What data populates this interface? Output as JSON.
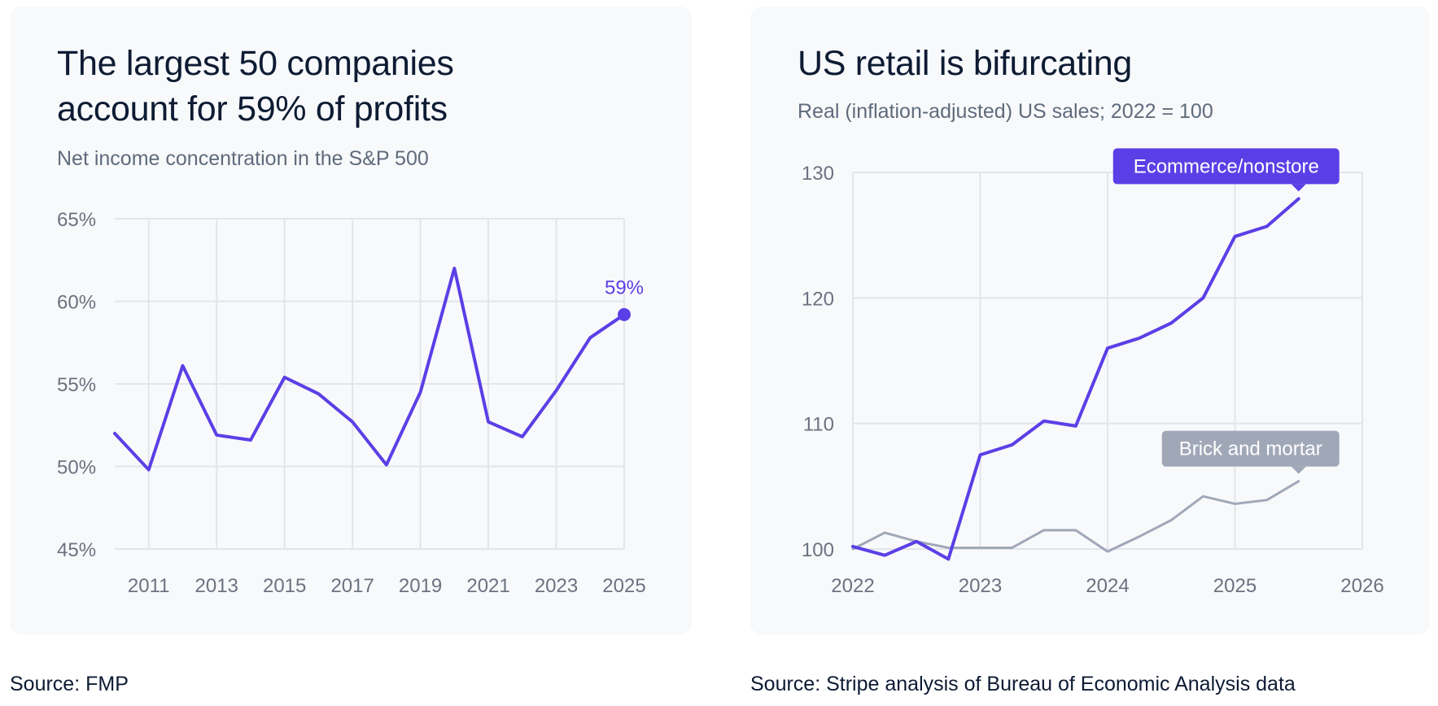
{
  "left_panel": {
    "title_line1": "The largest 50 companies",
    "title_line2": "account for 59% of profits",
    "subtitle": "Net income concentration in the S&P 500",
    "source": "Source: FMP"
  },
  "right_panel": {
    "title": "US retail is bifurcating",
    "subtitle": "Real (inflation-adjusted) US sales; 2022 = 100",
    "source": "Source: Stripe analysis of Bureau of Economic Analysis data"
  },
  "colors": {
    "accent": "#5b3fe6",
    "grey_series": "#a0a8b8",
    "grid": "#e3e5eb",
    "tick": "#6b7280"
  },
  "chart_data": [
    {
      "type": "line",
      "title": "The largest 50 companies account for 59% of profits",
      "subtitle": "Net income concentration in the S&P 500",
      "x": [
        2010,
        2011,
        2012,
        2013,
        2014,
        2015,
        2016,
        2017,
        2018,
        2019,
        2020,
        2021,
        2022,
        2023,
        2024,
        2025
      ],
      "series": [
        {
          "values": [
            52.0,
            49.8,
            56.1,
            51.9,
            51.6,
            55.4,
            54.4,
            52.7,
            50.1,
            54.5,
            62.0,
            52.7,
            51.8,
            54.6,
            57.8,
            59.2
          ]
        }
      ],
      "ylim": [
        45,
        65
      ],
      "y_ticks": [
        45,
        50,
        55,
        60,
        65
      ],
      "y_tick_labels": [
        "45%",
        "50%",
        "55%",
        "60%",
        "65%"
      ],
      "x_ticks": [
        2011,
        2013,
        2015,
        2017,
        2019,
        2021,
        2023,
        2025
      ],
      "x_tick_labels": [
        "2011",
        "2013",
        "2015",
        "2017",
        "2019",
        "2021",
        "2023",
        "2025"
      ],
      "annotation": {
        "x": 2025,
        "y": 59.2,
        "text": "59%"
      },
      "grid": true
    },
    {
      "type": "line",
      "title": "US retail is bifurcating",
      "subtitle": "Real (inflation-adjusted) US sales; 2022 = 100",
      "series": [
        {
          "name": "Ecommerce/nonstore",
          "x": [
            2022.0,
            2022.25,
            2022.5,
            2022.75,
            2023.0,
            2023.25,
            2023.5,
            2023.75,
            2024.0,
            2024.25,
            2024.5,
            2024.75,
            2025.0,
            2025.25,
            2025.5
          ],
          "values": [
            100.2,
            99.5,
            100.6,
            99.2,
            107.5,
            108.3,
            110.2,
            109.8,
            116.0,
            116.8,
            118.0,
            120.0,
            124.9,
            125.7,
            127.9
          ]
        },
        {
          "name": "Brick and mortar",
          "x": [
            2022.0,
            2022.25,
            2022.5,
            2022.75,
            2023.0,
            2023.25,
            2023.5,
            2023.75,
            2024.0,
            2024.25,
            2024.5,
            2024.75,
            2025.0,
            2025.25,
            2025.5
          ],
          "values": [
            100.0,
            101.3,
            100.6,
            100.1,
            100.1,
            100.1,
            101.5,
            101.5,
            99.8,
            101.0,
            102.3,
            104.2,
            103.6,
            103.9,
            105.4
          ]
        }
      ],
      "ylim": [
        100,
        130
      ],
      "xlim": [
        2022,
        2026
      ],
      "y_ticks": [
        100,
        110,
        120,
        130
      ],
      "y_tick_labels": [
        "100",
        "110",
        "120",
        "130"
      ],
      "x_ticks": [
        2022,
        2023,
        2024,
        2025,
        2026
      ],
      "x_tick_labels": [
        "2022",
        "2023",
        "2024",
        "2025",
        "2026"
      ],
      "grid": true
    }
  ]
}
